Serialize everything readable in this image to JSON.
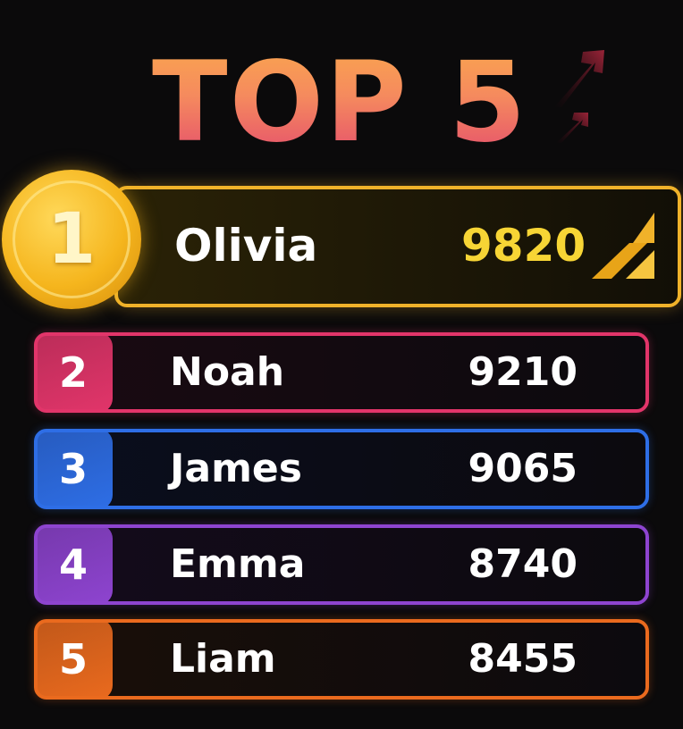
{
  "title": "TOP 5",
  "leader": {
    "rank": "1",
    "name": "Olivia",
    "score": "9820",
    "color": "#f0b22a",
    "icon": "trend-up-icon"
  },
  "rows": [
    {
      "rank": "2",
      "name": "Noah",
      "score": "9210",
      "color": "#e2356a",
      "bg": "#1a0a12"
    },
    {
      "rank": "3",
      "name": "James",
      "score": "9065",
      "color": "#2e6ee6",
      "bg": "#0a0e1e"
    },
    {
      "rank": "4",
      "name": "Emma",
      "score": "8740",
      "color": "#8e44d0",
      "bg": "#140b1c"
    },
    {
      "rank": "5",
      "name": "Liam",
      "score": "8455",
      "color": "#ea6a1e",
      "bg": "#1a0f08"
    }
  ]
}
